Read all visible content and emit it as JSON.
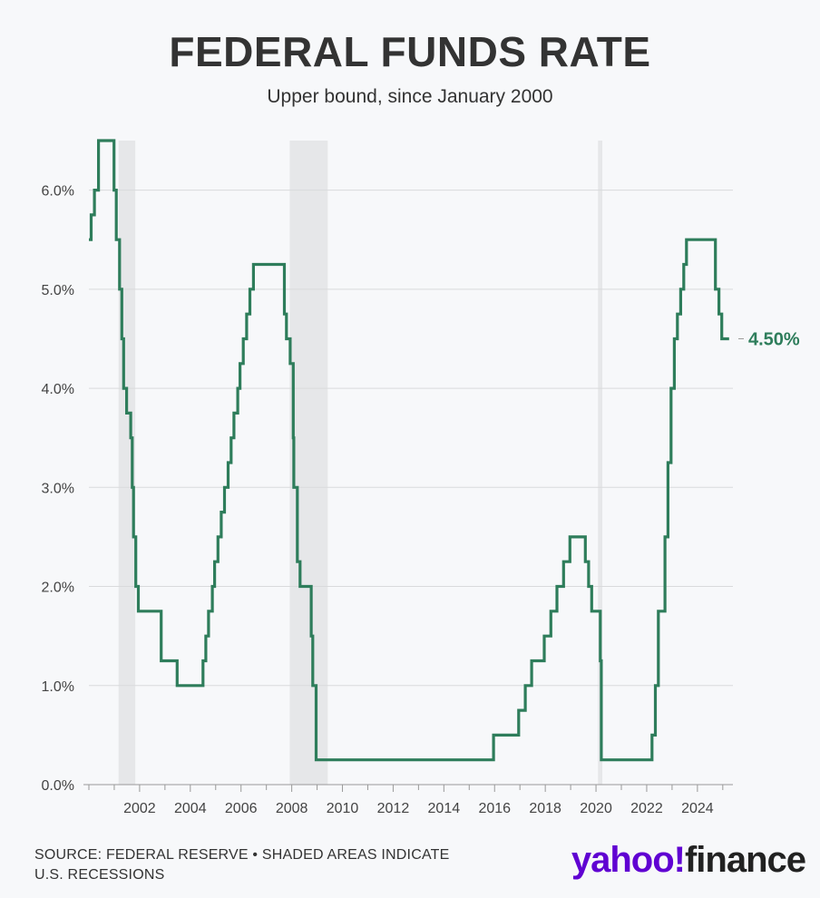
{
  "header": {
    "title": "FEDERAL FUNDS RATE",
    "subtitle": "Upper bound, since January 2000"
  },
  "footer": {
    "source_line1": "SOURCE: FEDERAL RESERVE • SHADED AREAS INDICATE",
    "source_line2": "U.S. RECESSIONS",
    "logo_yahoo": "yahoo!",
    "logo_finance": "finance"
  },
  "colors": {
    "line": "#2e7d5b",
    "recession": "#e6e7e9",
    "grid": "#d9dadc",
    "background": "#f7f8fa",
    "logo_purple": "#6001d2"
  },
  "chart_data": {
    "type": "line",
    "title": "FEDERAL FUNDS RATE",
    "subtitle": "Upper bound, since January 2000",
    "xlabel": "",
    "ylabel": "",
    "xlim": [
      2000.0,
      2025.4
    ],
    "ylim": [
      0,
      6.5
    ],
    "grid": true,
    "x_ticks": [
      2002,
      2004,
      2006,
      2008,
      2010,
      2012,
      2014,
      2016,
      2018,
      2020,
      2022,
      2024
    ],
    "y_ticks": [
      0,
      1,
      2,
      3,
      4,
      5,
      6
    ],
    "y_tick_labels": [
      "0.0%",
      "1.0%",
      "2.0%",
      "3.0%",
      "4.0%",
      "5.0%",
      "6.0%"
    ],
    "recessions": [
      {
        "start": 2001.17,
        "end": 2001.83
      },
      {
        "start": 2007.92,
        "end": 2009.42
      },
      {
        "start": 2020.08,
        "end": 2020.25
      }
    ],
    "end_label": "4.50%",
    "series": [
      {
        "step": "post",
        "points": [
          [
            2000.0,
            5.5
          ],
          [
            2000.09,
            5.75
          ],
          [
            2000.22,
            6.0
          ],
          [
            2000.38,
            6.5
          ],
          [
            2000.99,
            6.0
          ],
          [
            2001.08,
            5.5
          ],
          [
            2001.21,
            5.0
          ],
          [
            2001.3,
            4.5
          ],
          [
            2001.37,
            4.0
          ],
          [
            2001.49,
            3.75
          ],
          [
            2001.65,
            3.5
          ],
          [
            2001.71,
            3.0
          ],
          [
            2001.76,
            2.5
          ],
          [
            2001.85,
            2.0
          ],
          [
            2001.95,
            1.75
          ],
          [
            2002.85,
            1.25
          ],
          [
            2003.48,
            1.0
          ],
          [
            2004.5,
            1.25
          ],
          [
            2004.61,
            1.5
          ],
          [
            2004.72,
            1.75
          ],
          [
            2004.87,
            2.0
          ],
          [
            2004.96,
            2.25
          ],
          [
            2005.09,
            2.5
          ],
          [
            2005.22,
            2.75
          ],
          [
            2005.35,
            3.0
          ],
          [
            2005.49,
            3.25
          ],
          [
            2005.61,
            3.5
          ],
          [
            2005.72,
            3.75
          ],
          [
            2005.87,
            4.0
          ],
          [
            2005.96,
            4.25
          ],
          [
            2006.09,
            4.5
          ],
          [
            2006.22,
            4.75
          ],
          [
            2006.35,
            5.0
          ],
          [
            2006.49,
            5.25
          ],
          [
            2007.71,
            4.75
          ],
          [
            2007.79,
            4.5
          ],
          [
            2007.94,
            4.25
          ],
          [
            2008.06,
            3.5
          ],
          [
            2008.08,
            3.0
          ],
          [
            2008.22,
            2.25
          ],
          [
            2008.33,
            2.0
          ],
          [
            2008.77,
            1.5
          ],
          [
            2008.83,
            1.0
          ],
          [
            2008.96,
            0.25
          ],
          [
            2015.96,
            0.5
          ],
          [
            2016.95,
            0.75
          ],
          [
            2017.21,
            1.0
          ],
          [
            2017.46,
            1.25
          ],
          [
            2017.96,
            1.5
          ],
          [
            2018.22,
            1.75
          ],
          [
            2018.46,
            2.0
          ],
          [
            2018.72,
            2.25
          ],
          [
            2018.97,
            2.5
          ],
          [
            2019.58,
            2.25
          ],
          [
            2019.71,
            2.0
          ],
          [
            2019.83,
            1.75
          ],
          [
            2020.17,
            1.25
          ],
          [
            2020.21,
            0.25
          ],
          [
            2022.21,
            0.5
          ],
          [
            2022.34,
            1.0
          ],
          [
            2022.46,
            1.75
          ],
          [
            2022.72,
            2.5
          ],
          [
            2022.84,
            3.25
          ],
          [
            2022.96,
            4.0
          ],
          [
            2023.09,
            4.5
          ],
          [
            2023.21,
            4.75
          ],
          [
            2023.34,
            5.0
          ],
          [
            2023.46,
            5.25
          ],
          [
            2023.57,
            5.5
          ],
          [
            2024.71,
            5.0
          ],
          [
            2024.85,
            4.75
          ],
          [
            2024.96,
            4.5
          ],
          [
            2025.25,
            4.5
          ]
        ]
      }
    ]
  }
}
